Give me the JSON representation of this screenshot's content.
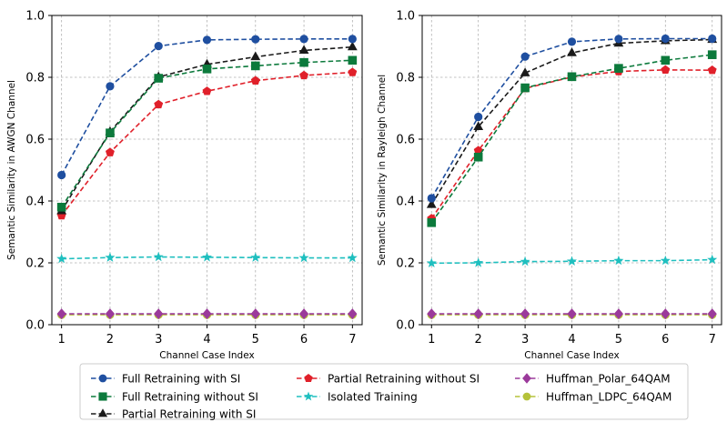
{
  "chart_data": [
    {
      "type": "line",
      "xlabel": "Channel Case Index",
      "ylabel": "Semantic Similarity in AWGN Channel",
      "x": [
        1,
        2,
        3,
        4,
        5,
        6,
        7
      ],
      "xlim": [
        0.8,
        7.2
      ],
      "ylim": [
        0.0,
        1.0
      ],
      "yticks": [
        0.0,
        0.2,
        0.4,
        0.6,
        0.8,
        1.0
      ],
      "grid": true,
      "series": [
        {
          "name": "Full Retraining with SI",
          "color": "#1f4fa0",
          "marker": "circle",
          "values": [
            0.484,
            0.771,
            0.901,
            0.921,
            0.923,
            0.924,
            0.924
          ]
        },
        {
          "name": "Full Retraining without SI",
          "color": "#0c7a3c",
          "marker": "square",
          "values": [
            0.38,
            0.62,
            0.797,
            0.827,
            0.837,
            0.848,
            0.855
          ]
        },
        {
          "name": "Partial Retraining with SI",
          "color": "#1a1a1a",
          "marker": "triangle",
          "values": [
            0.368,
            0.624,
            0.801,
            0.842,
            0.866,
            0.887,
            0.898
          ]
        },
        {
          "name": "Partial Retraining without SI",
          "color": "#e0202a",
          "marker": "pentagon",
          "values": [
            0.353,
            0.557,
            0.712,
            0.755,
            0.789,
            0.806,
            0.816
          ]
        },
        {
          "name": "Isolated Training",
          "color": "#1fbfbf",
          "marker": "star",
          "values": [
            0.213,
            0.217,
            0.219,
            0.218,
            0.217,
            0.216,
            0.216
          ]
        },
        {
          "name": "Huffman_Polar_64QAM",
          "color": "#9b3a9b",
          "marker": "diamond",
          "values": [
            0.035,
            0.035,
            0.035,
            0.035,
            0.035,
            0.035,
            0.035
          ]
        },
        {
          "name": "Huffman_LDPC_64QAM",
          "color": "#b5c23a",
          "marker": "circle",
          "values": [
            0.032,
            0.032,
            0.032,
            0.032,
            0.032,
            0.032,
            0.032
          ]
        }
      ]
    },
    {
      "type": "line",
      "xlabel": "Channel Case Index",
      "ylabel": "Semantic Similarity in Rayleigh Channel",
      "x": [
        1,
        2,
        3,
        4,
        5,
        6,
        7
      ],
      "xlim": [
        0.8,
        7.2
      ],
      "ylim": [
        0.0,
        1.0
      ],
      "yticks": [
        0.0,
        0.2,
        0.4,
        0.6,
        0.8,
        1.0
      ],
      "grid": true,
      "series": [
        {
          "name": "Full Retraining with SI",
          "color": "#1f4fa0",
          "marker": "circle",
          "values": [
            0.409,
            0.672,
            0.867,
            0.915,
            0.924,
            0.925,
            0.925
          ]
        },
        {
          "name": "Full Retraining without SI",
          "color": "#0c7a3c",
          "marker": "square",
          "values": [
            0.33,
            0.542,
            0.766,
            0.802,
            0.829,
            0.855,
            0.873
          ]
        },
        {
          "name": "Partial Retraining with SI",
          "color": "#1a1a1a",
          "marker": "triangle",
          "values": [
            0.388,
            0.64,
            0.814,
            0.879,
            0.91,
            0.918,
            0.922
          ]
        },
        {
          "name": "Partial Retraining without SI",
          "color": "#e0202a",
          "marker": "pentagon",
          "values": [
            0.343,
            0.563,
            0.764,
            0.801,
            0.819,
            0.824,
            0.823
          ]
        },
        {
          "name": "Isolated Training",
          "color": "#1fbfbf",
          "marker": "star",
          "values": [
            0.199,
            0.2,
            0.204,
            0.205,
            0.207,
            0.207,
            0.21
          ]
        },
        {
          "name": "Huffman_Polar_64QAM",
          "color": "#9b3a9b",
          "marker": "diamond",
          "values": [
            0.035,
            0.035,
            0.035,
            0.035,
            0.035,
            0.035,
            0.035
          ]
        },
        {
          "name": "Huffman_LDPC_64QAM",
          "color": "#b5c23a",
          "marker": "circle",
          "values": [
            0.032,
            0.032,
            0.032,
            0.032,
            0.032,
            0.032,
            0.032
          ]
        }
      ]
    }
  ],
  "legend": {
    "placement": "bottom-center",
    "entries": [
      "Full Retraining with SI",
      "Full Retraining without SI",
      "Partial Retraining with SI",
      "Partial Retraining without SI",
      "Isolated Training",
      "Huffman_Polar_64QAM",
      "Huffman_LDPC_64QAM"
    ]
  }
}
